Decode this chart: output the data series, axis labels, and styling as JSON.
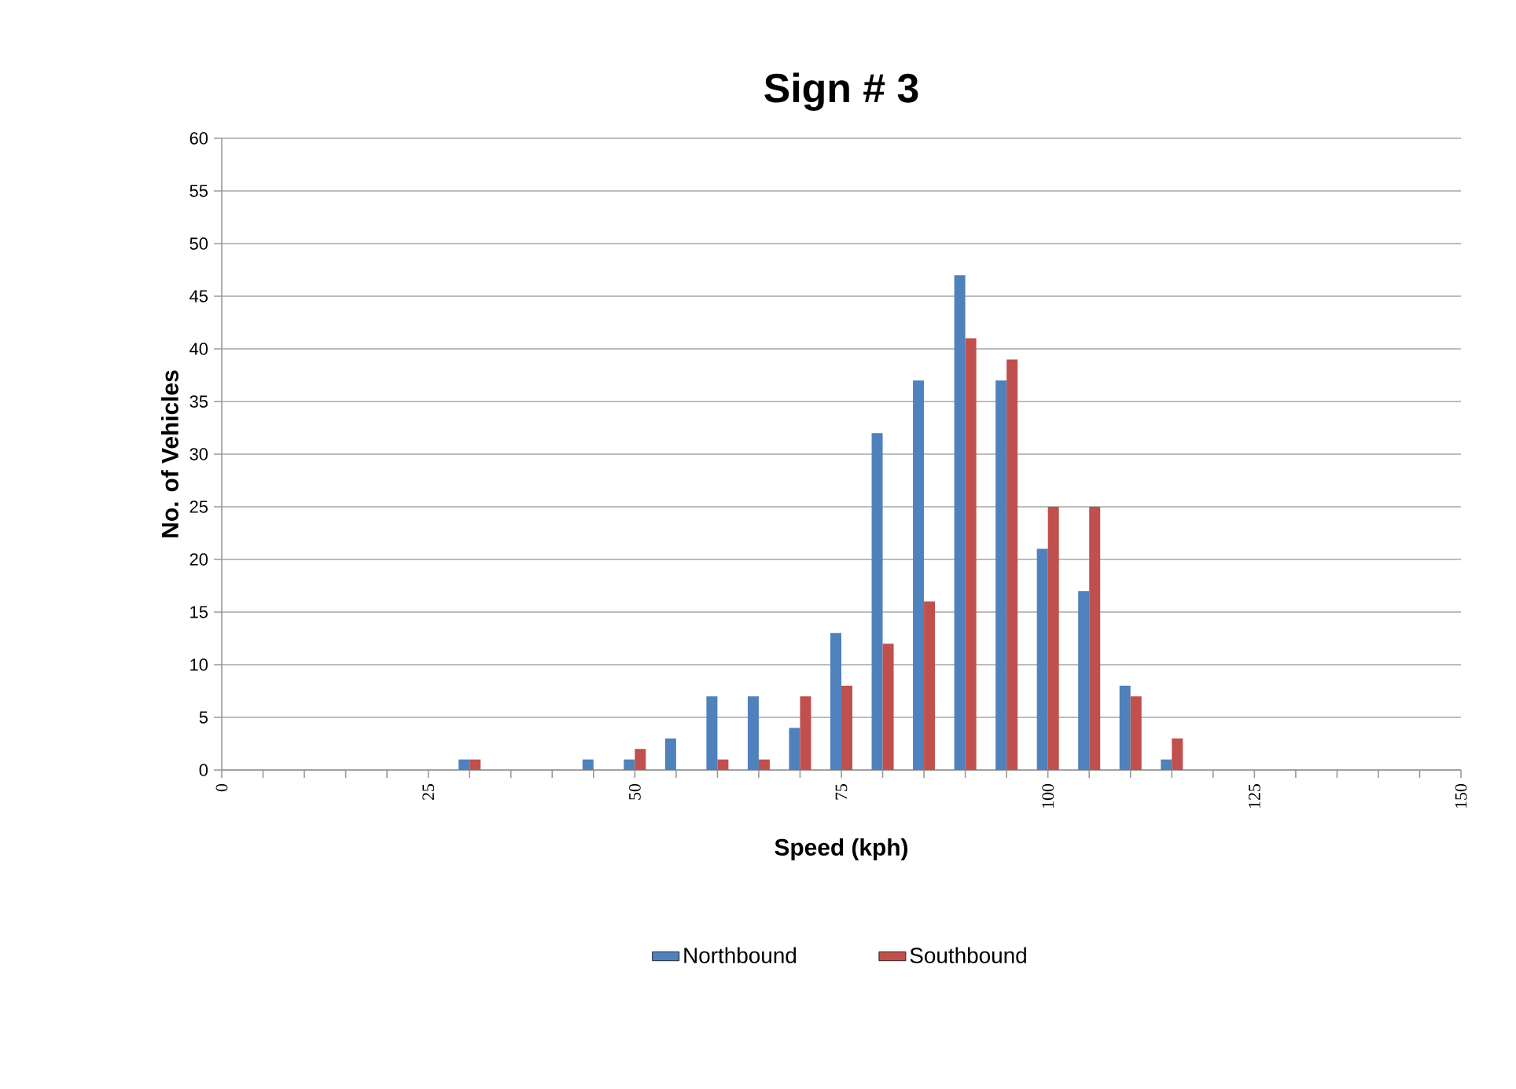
{
  "chart_data": {
    "type": "bar",
    "title": "Sign # 3",
    "xlabel": "Speed (kph)",
    "ylabel": "No. of Vehicles",
    "x": [
      30,
      45,
      50,
      55,
      60,
      65,
      70,
      75,
      80,
      85,
      90,
      95,
      100,
      105,
      110,
      115
    ],
    "series": [
      {
        "name": "Northbound",
        "color": "#4f81bd",
        "values": [
          1,
          1,
          1,
          3,
          7,
          7,
          4,
          13,
          32,
          37,
          47,
          37,
          21,
          17,
          8,
          1
        ]
      },
      {
        "name": "Southbound",
        "color": "#c0504d",
        "values": [
          1,
          null,
          2,
          null,
          1,
          1,
          7,
          8,
          12,
          16,
          41,
          39,
          25,
          25,
          7,
          3
        ]
      }
    ],
    "xlim": [
      0,
      150
    ],
    "xticks": [
      0,
      {
        "value": 5,
        "label": null
      },
      {
        "value": 10,
        "label": null
      },
      {
        "value": 15,
        "label": null
      },
      {
        "value": 20,
        "label": null
      },
      25,
      {
        "value": 30,
        "label": null
      },
      {
        "value": 35,
        "label": null
      },
      {
        "value": 40,
        "label": null
      },
      {
        "value": 45,
        "label": null
      },
      50,
      {
        "value": 55,
        "label": null
      },
      {
        "value": 60,
        "label": null
      },
      {
        "value": 65,
        "label": null
      },
      {
        "value": 70,
        "label": null
      },
      75,
      {
        "value": 80,
        "label": null
      },
      {
        "value": 85,
        "label": null
      },
      {
        "value": 90,
        "label": null
      },
      {
        "value": 95,
        "label": null
      },
      100,
      {
        "value": 105,
        "label": null
      },
      {
        "value": 110,
        "label": null
      },
      {
        "value": 115,
        "label": null
      },
      {
        "value": 120,
        "label": null
      },
      125,
      {
        "value": 130,
        "label": null
      },
      {
        "value": 135,
        "label": null
      },
      {
        "value": 140,
        "label": null
      },
      {
        "value": 145,
        "label": null
      },
      150
    ],
    "ylim": [
      0,
      60
    ],
    "yticks": [
      0,
      5,
      10,
      15,
      20,
      25,
      30,
      35,
      40,
      45,
      50,
      55,
      60
    ],
    "grid": "y",
    "legend": "bottom"
  }
}
